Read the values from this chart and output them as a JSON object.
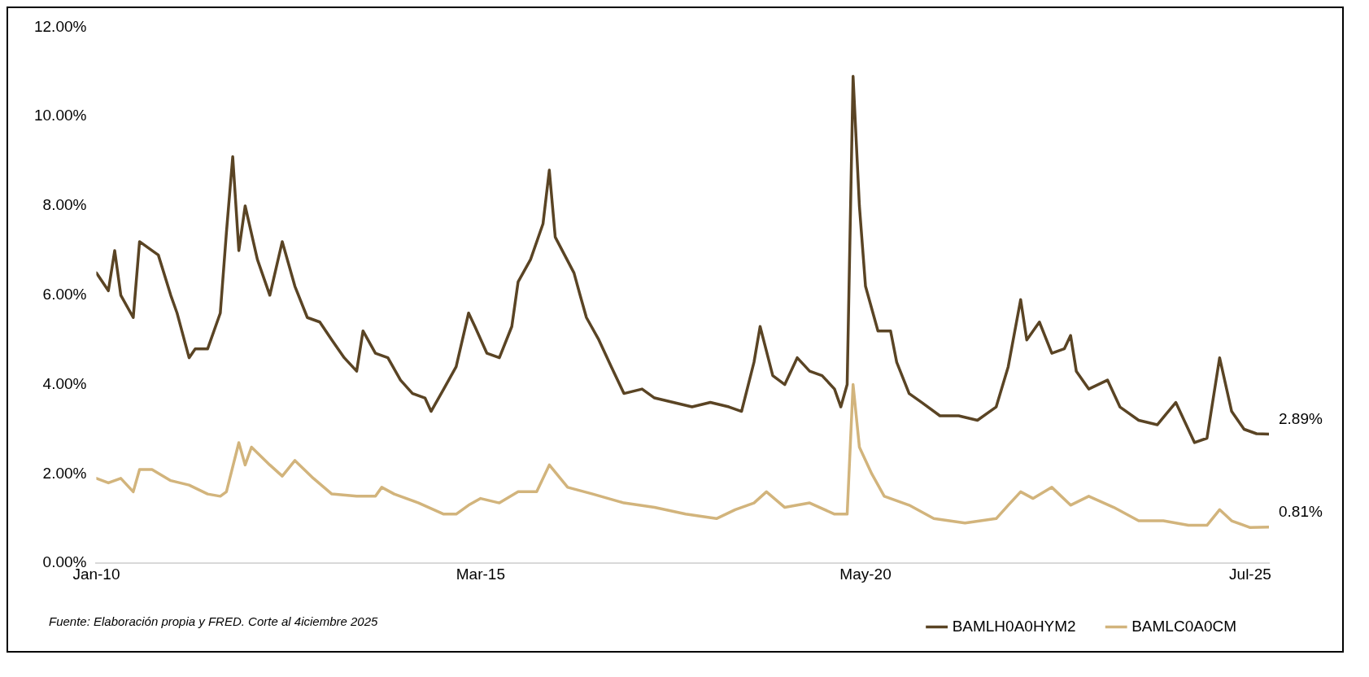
{
  "chart_data": {
    "type": "line",
    "xlim": [
      "2010-01",
      "2025-10"
    ],
    "xticks": [
      {
        "value": "2010-01",
        "label": "Jan-10"
      },
      {
        "value": "2015-03",
        "label": "Mar-15"
      },
      {
        "value": "2020-05",
        "label": "May-20"
      },
      {
        "value": "2025-07",
        "label": "Jul-25"
      }
    ],
    "ylim": [
      0,
      12
    ],
    "yticks": [
      {
        "value": 0,
        "label": "0.00%"
      },
      {
        "value": 2,
        "label": "2.00%"
      },
      {
        "value": 4,
        "label": "4.00%"
      },
      {
        "value": 6,
        "label": "6.00%"
      },
      {
        "value": 8,
        "label": "8.00%"
      },
      {
        "value": 10,
        "label": "10.00%"
      },
      {
        "value": 12,
        "label": "12.00%"
      }
    ],
    "grid": false,
    "legend": "bottom right",
    "marker": "none",
    "line_style": "solid",
    "series": [
      {
        "name": "BAMLH0A0HYM2",
        "color": "#5a4424",
        "x": [
          "2010-01",
          "2010-03",
          "2010-04",
          "2010-05",
          "2010-07",
          "2010-08",
          "2010-10",
          "2010-11",
          "2011-01",
          "2011-02",
          "2011-04",
          "2011-05",
          "2011-07",
          "2011-09",
          "2011-10",
          "2011-11",
          "2011-12",
          "2012-01",
          "2012-03",
          "2012-05",
          "2012-07",
          "2012-09",
          "2012-11",
          "2013-01",
          "2013-03",
          "2013-05",
          "2013-07",
          "2013-08",
          "2013-10",
          "2013-12",
          "2014-02",
          "2014-04",
          "2014-06",
          "2014-07",
          "2014-09",
          "2014-11",
          "2015-01",
          "2015-02",
          "2015-04",
          "2015-06",
          "2015-08",
          "2015-09",
          "2015-11",
          "2016-01",
          "2016-02",
          "2016-03",
          "2016-06",
          "2016-07",
          "2016-08",
          "2016-10",
          "2016-12",
          "2017-02",
          "2017-05",
          "2017-07",
          "2017-10",
          "2018-01",
          "2018-04",
          "2018-07",
          "2018-09",
          "2018-11",
          "2018-12",
          "2019-02",
          "2019-04",
          "2019-06",
          "2019-08",
          "2019-10",
          "2019-12",
          "2020-01",
          "2020-02",
          "2020-03",
          "2020-04",
          "2020-05",
          "2020-07",
          "2020-09",
          "2020-10",
          "2020-12",
          "2021-02",
          "2021-05",
          "2021-08",
          "2021-11",
          "2022-02",
          "2022-04",
          "2022-06",
          "2022-07",
          "2022-09",
          "2022-11",
          "2023-01",
          "2023-02",
          "2023-03",
          "2023-05",
          "2023-08",
          "2023-10",
          "2024-01",
          "2024-04",
          "2024-07",
          "2024-10",
          "2024-12",
          "2025-02",
          "2025-04",
          "2025-06",
          "2025-08",
          "2025-10"
        ],
        "values": [
          6.5,
          6.1,
          7.0,
          6.0,
          5.5,
          7.2,
          7.0,
          6.9,
          6.0,
          5.6,
          4.6,
          4.8,
          4.8,
          5.6,
          7.4,
          9.1,
          7.0,
          8.0,
          6.8,
          6.0,
          7.2,
          6.2,
          5.5,
          5.4,
          5.0,
          4.6,
          4.3,
          5.2,
          4.7,
          4.6,
          4.1,
          3.8,
          3.7,
          3.4,
          3.9,
          4.4,
          5.6,
          5.3,
          4.7,
          4.6,
          5.3,
          6.3,
          6.8,
          7.6,
          8.8,
          7.3,
          6.5,
          6.0,
          5.5,
          5.0,
          4.4,
          3.8,
          3.9,
          3.7,
          3.6,
          3.5,
          3.6,
          3.5,
          3.4,
          4.5,
          5.3,
          4.2,
          4.0,
          4.6,
          4.3,
          4.2,
          3.9,
          3.5,
          4.0,
          10.9,
          8.0,
          6.2,
          5.2,
          5.2,
          4.5,
          3.8,
          3.6,
          3.3,
          3.3,
          3.2,
          3.5,
          4.4,
          5.9,
          5.0,
          5.4,
          4.7,
          4.8,
          5.1,
          4.3,
          3.9,
          4.1,
          3.5,
          3.2,
          3.1,
          3.6,
          2.7,
          2.8,
          4.6,
          3.4,
          3.0,
          2.9,
          2.89
        ]
      },
      {
        "name": "BAMLC0A0CM",
        "color": "#d2b47c",
        "x": [
          "2010-01",
          "2010-03",
          "2010-05",
          "2010-07",
          "2010-08",
          "2010-10",
          "2011-01",
          "2011-04",
          "2011-07",
          "2011-09",
          "2011-10",
          "2011-12",
          "2012-01",
          "2012-02",
          "2012-05",
          "2012-07",
          "2012-09",
          "2012-12",
          "2013-03",
          "2013-07",
          "2013-10",
          "2013-11",
          "2014-01",
          "2014-05",
          "2014-09",
          "2014-11",
          "2015-01",
          "2015-03",
          "2015-06",
          "2015-09",
          "2015-12",
          "2016-02",
          "2016-05",
          "2016-09",
          "2017-02",
          "2017-07",
          "2017-12",
          "2018-05",
          "2018-08",
          "2018-11",
          "2019-01",
          "2019-04",
          "2019-08",
          "2019-12",
          "2020-02",
          "2020-03",
          "2020-04",
          "2020-06",
          "2020-08",
          "2020-12",
          "2021-04",
          "2021-09",
          "2022-02",
          "2022-04",
          "2022-06",
          "2022-08",
          "2022-11",
          "2023-02",
          "2023-05",
          "2023-09",
          "2024-01",
          "2024-05",
          "2024-09",
          "2024-12",
          "2025-02",
          "2025-04",
          "2025-07",
          "2025-10"
        ],
        "values": [
          1.9,
          1.8,
          1.9,
          1.6,
          2.1,
          2.1,
          1.85,
          1.75,
          1.55,
          1.5,
          1.6,
          2.7,
          2.2,
          2.6,
          2.2,
          1.95,
          2.3,
          1.9,
          1.55,
          1.5,
          1.5,
          1.7,
          1.55,
          1.35,
          1.1,
          1.1,
          1.3,
          1.45,
          1.35,
          1.6,
          1.6,
          2.2,
          1.7,
          1.55,
          1.35,
          1.25,
          1.1,
          1.0,
          1.2,
          1.35,
          1.6,
          1.25,
          1.35,
          1.1,
          1.1,
          4.0,
          2.6,
          2.0,
          1.5,
          1.3,
          1.0,
          0.9,
          1.0,
          1.3,
          1.6,
          1.45,
          1.7,
          1.3,
          1.5,
          1.25,
          0.95,
          0.95,
          0.85,
          0.85,
          1.2,
          0.95,
          0.8,
          0.81
        ]
      }
    ],
    "annotations": [
      {
        "text": "2.89%",
        "x": "2025-10",
        "y": 2.89
      },
      {
        "text": "0.81%",
        "x": "2025-10",
        "y": 0.81
      },
      "Fuente: Elaboración propia y FRED. Corte al 4iciembre 2025"
    ]
  }
}
